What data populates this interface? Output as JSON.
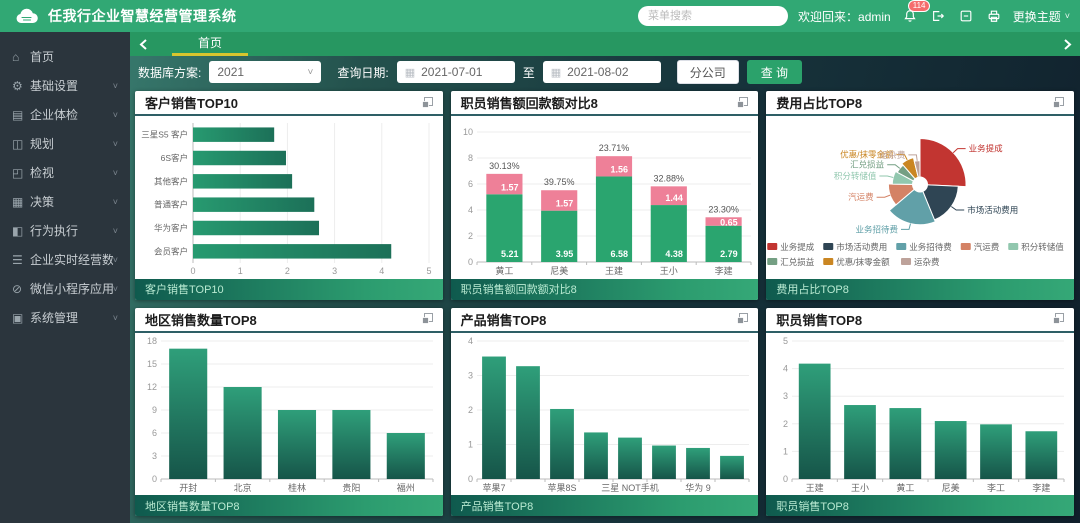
{
  "header": {
    "app_title": "任我行企业智慧经营管理系统",
    "search_placeholder": "菜单搜索",
    "welcome": "欢迎回来：admin",
    "badge_count": "114",
    "theme_label": "更换主题"
  },
  "sidebar": {
    "items": [
      {
        "label": "首页",
        "icon": "home-icon",
        "expandable": false
      },
      {
        "label": "基础设置",
        "icon": "settings-gear-icon",
        "expandable": true
      },
      {
        "label": "企业体检",
        "icon": "health-check-icon",
        "expandable": true
      },
      {
        "label": "规划",
        "icon": "planning-icon",
        "expandable": true
      },
      {
        "label": "检视",
        "icon": "inspect-icon",
        "expandable": true
      },
      {
        "label": "决策",
        "icon": "decision-icon",
        "expandable": true
      },
      {
        "label": "行为执行",
        "icon": "action-exec-icon",
        "expandable": true
      },
      {
        "label": "企业实时经营数据",
        "icon": "realtime-data-icon",
        "expandable": true
      },
      {
        "label": "微信小程序应用",
        "icon": "wechat-miniapp-icon",
        "expandable": true
      },
      {
        "label": "系统管理",
        "icon": "system-manage-icon",
        "expandable": true
      }
    ]
  },
  "tabs": {
    "active": "首页"
  },
  "filters": {
    "db_label": "数据库方案:",
    "db_value": "2021",
    "date_label": "查询日期:",
    "date_from": "2021-07-01",
    "to_label": "至",
    "date_to": "2021-08-02",
    "branch_label": "分公司",
    "query_label": "查 询"
  },
  "colors": {
    "header_green": "#31a874",
    "tab_green": "#279761",
    "sidebar_bg": "#2b353d",
    "tab_underline_yellow": "#d8c52e",
    "bar_gradient_top": "#2f9f7a",
    "bar_gradient_bottom": "#165549",
    "stack_green": "#2aa56f",
    "stack_pink": "#ee8098",
    "badge_red": "#f56c6c",
    "query_button_green": "#2ba26b"
  },
  "chart_data": [
    {
      "type": "bar-horizontal",
      "title": "客户销售TOP10",
      "footer_label": "客户销售TOP10",
      "categories": [
        "三星S5 客户",
        "6S客户",
        "其他客户",
        "普通客户",
        "华为客户",
        "会员客户"
      ],
      "values": [
        1.72,
        1.97,
        2.1,
        2.57,
        2.67,
        4.2
      ],
      "xlim": [
        0,
        5
      ],
      "xstep": 1
    },
    {
      "type": "bar-stacked",
      "title": "职员销售额回款额对比8",
      "footer_label": "职员销售额回款额对比8",
      "categories": [
        "黄工",
        "尼美",
        "王建",
        "王小",
        "李建"
      ],
      "series": [
        {
          "name": "销售额",
          "color": "#2aa56f",
          "values": [
            5.21,
            3.95,
            6.58,
            4.38,
            2.79
          ]
        },
        {
          "name": "回款额",
          "color": "#ee8098",
          "values": [
            1.57,
            1.57,
            1.56,
            1.44,
            0.65
          ]
        }
      ],
      "percent_labels": [
        "30.13%",
        "39.75%",
        "23.71%",
        "32.88%",
        "23.30%"
      ],
      "ylim": [
        0,
        10
      ],
      "ystep": 2
    },
    {
      "type": "pie-rose",
      "title": "费用占比TOP8",
      "footer_label": "费用占比TOP8",
      "slices": [
        {
          "name": "业务提成",
          "value": 27,
          "color": "#c23531"
        },
        {
          "name": "市场活动费用",
          "value": 19,
          "color": "#2f4554"
        },
        {
          "name": "业务招待费",
          "value": 21,
          "color": "#61a0a8"
        },
        {
          "name": "汽运费",
          "value": 12,
          "color": "#d48265"
        },
        {
          "name": "积分转储值",
          "value": 8,
          "color": "#91c7ae"
        },
        {
          "name": "汇兑损益",
          "value": 6,
          "color": "#749f83"
        },
        {
          "name": "优惠/抹零金额",
          "value": 8,
          "color": "#ca8622"
        },
        {
          "name": "运杂费",
          "value": 4,
          "color": "#bda29a"
        }
      ],
      "legend_rows": [
        [
          "业务提成",
          "市场活动费用",
          "业务招待费",
          "汽运费",
          "积分转储值"
        ],
        [
          "汇兑损益",
          "优惠/抹零金额",
          "运杂费"
        ]
      ]
    },
    {
      "type": "bar",
      "title": "地区销售数量TOP8",
      "footer_label": "地区销售数量TOP8",
      "categories": [
        "开封",
        "北京",
        "桂林",
        "贵阳",
        "福州"
      ],
      "values": [
        17,
        12,
        9,
        9,
        6
      ],
      "ylim": [
        0,
        18
      ],
      "ystep": 3
    },
    {
      "type": "bar",
      "title": "产品销售TOP8",
      "footer_label": "产品销售TOP8",
      "categories": [
        "苹果7",
        "",
        "苹果8S",
        "",
        "三星 NOT手机",
        "",
        "华为 9",
        ""
      ],
      "values": [
        3.55,
        3.27,
        2.03,
        1.35,
        1.2,
        0.97,
        0.9,
        0.67
      ],
      "ylim": [
        0,
        4
      ],
      "ystep": 1
    },
    {
      "type": "bar",
      "title": "职员销售TOP8",
      "footer_label": "职员销售TOP8",
      "categories": [
        "王建",
        "王小",
        "黄工",
        "尼美",
        "李工",
        "李建"
      ],
      "values": [
        4.18,
        2.68,
        2.57,
        2.1,
        1.98,
        1.73
      ],
      "ylim": [
        0,
        5
      ],
      "ystep": 1
    }
  ]
}
